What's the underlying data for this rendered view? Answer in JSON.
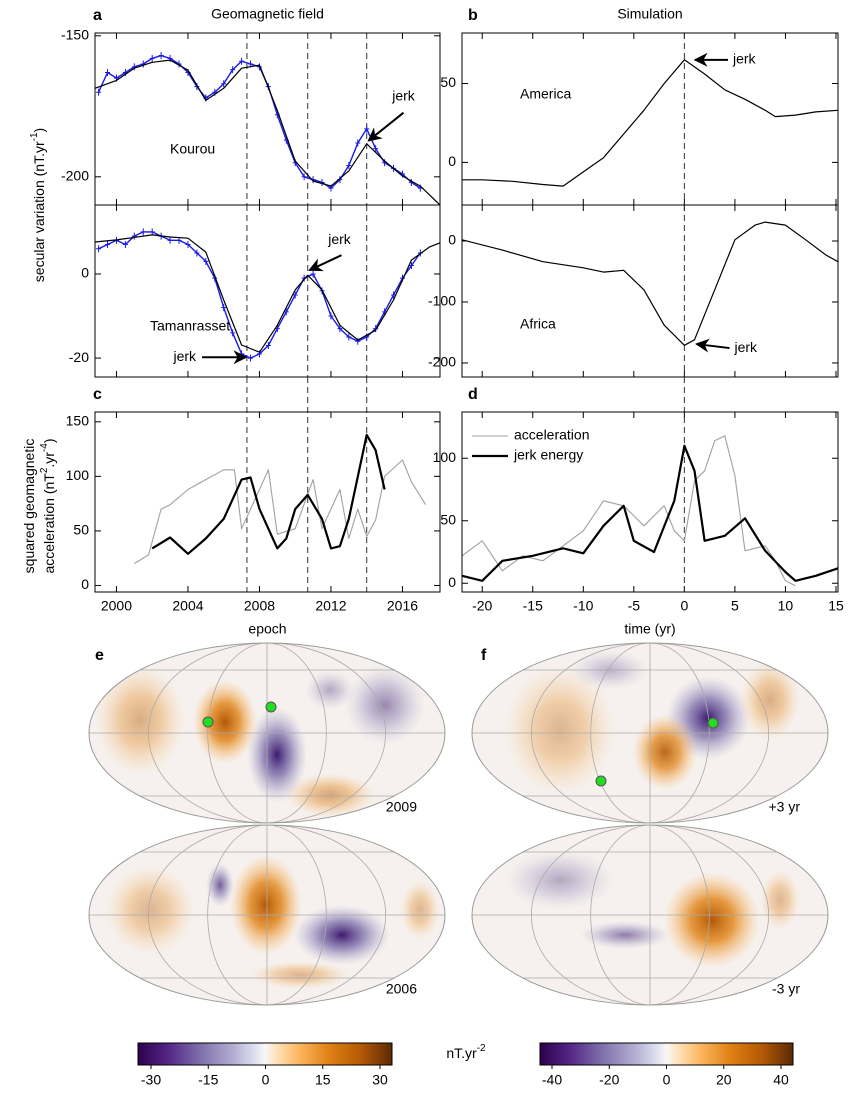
{
  "chart_data": [
    {
      "type": "line",
      "panel": "a",
      "title": "Geomagnetic field",
      "label": "Kourou",
      "ylabel": [
        [
          {
            "t": "secular variation (nT.yr"
          },
          {
            "t": "-1",
            "sup": true
          },
          {
            "t": ")"
          }
        ]
      ],
      "xlim": [
        1998.8,
        2018.1
      ],
      "xticks": [
        2000,
        2004,
        2008,
        2012,
        2016
      ],
      "xtick_labels": false,
      "ylim": [
        -210,
        -149
      ],
      "yticks": [
        -150,
        -200
      ],
      "vlines": [
        2007.3,
        2010.7,
        2014
      ],
      "series": [
        {
          "color": "#1a1ae6",
          "linewidth": 1.4,
          "marker": "+",
          "x": [
            1999,
            1999.5,
            2000,
            2000.5,
            2001,
            2001.5,
            2002,
            2002.5,
            2003,
            2003.5,
            2004,
            2004.5,
            2005,
            2005.5,
            2006,
            2006.5,
            2007,
            2007.5,
            2008,
            2008.5,
            2009,
            2009.5,
            2010,
            2010.5,
            2011,
            2011.5,
            2012,
            2012.5,
            2013,
            2013.5,
            2014,
            2014.5,
            2015,
            2015.5,
            2016,
            2016.5,
            2017
          ],
          "values": [
            -170,
            -163,
            -165,
            -163,
            -161,
            -160,
            -158,
            -157,
            -158,
            -160,
            -163,
            -168,
            -172,
            -170,
            -167,
            -162,
            -159,
            -160,
            -161,
            -168,
            -178,
            -187,
            -195,
            -200,
            -201,
            -202,
            -204,
            -201,
            -196,
            -188,
            -183,
            -190,
            -195,
            -197,
            -199,
            -202,
            -204
          ]
        },
        {
          "color": "#000000",
          "linewidth": 1.2,
          "x": [
            1998.8,
            2000,
            2001,
            2002,
            2003,
            2004,
            2005,
            2006,
            2007,
            2008,
            2009,
            2010,
            2011,
            2012,
            2013,
            2014,
            2015,
            2016,
            2017,
            2018.1
          ],
          "values": [
            -168.6,
            -165.8,
            -161.5,
            -159.4,
            -158.6,
            -162.2,
            -172.9,
            -168.6,
            -161.5,
            -160.4,
            -176.5,
            -194.4,
            -201.5,
            -203.3,
            -197.9,
            -188.3,
            -194.4,
            -199.7,
            -203.3,
            -210
          ]
        }
      ],
      "annotations": [
        {
          "text": "jerk",
          "x": 2014.1,
          "y": -187.2
        }
      ]
    },
    {
      "type": "line",
      "label": "Tamanrasset",
      "xlim": [
        1998.8,
        2018.1
      ],
      "xticks": [
        2000,
        2004,
        2008,
        2012,
        2016
      ],
      "xtick_labels": false,
      "ylim": [
        -24.5,
        16.4
      ],
      "yticks": [
        0,
        -20
      ],
      "vlines": [
        2007.3,
        2010.7,
        2014
      ],
      "series": [
        {
          "color": "#1a1ae6",
          "linewidth": 1.4,
          "marker": "+",
          "x": [
            1999,
            1999.5,
            2000,
            2000.5,
            2001,
            2001.5,
            2002,
            2002.5,
            2003,
            2003.5,
            2004,
            2004.5,
            2005,
            2005.5,
            2006,
            2006.5,
            2007,
            2007.5,
            2008,
            2008.5,
            2009,
            2009.5,
            2010,
            2010.5,
            2011,
            2011.5,
            2012,
            2012.5,
            2013,
            2013.5,
            2014,
            2014.5,
            2015,
            2015.5,
            2016,
            2016.5,
            2017
          ],
          "values": [
            6,
            7,
            8,
            7,
            9,
            10,
            10,
            9,
            8,
            8,
            7,
            5,
            3,
            -1,
            -8,
            -14,
            -19,
            -20,
            -19,
            -17,
            -13,
            -9,
            -5,
            -1,
            0,
            -4,
            -10,
            -13,
            -15,
            -16,
            -15,
            -13,
            -9,
            -5,
            -1,
            2,
            5
          ]
        },
        {
          "color": "#000000",
          "linewidth": 1.2,
          "x": [
            1998.8,
            2000,
            2002,
            2003,
            2004,
            2005,
            2006,
            2007,
            2008,
            2009,
            2010,
            2010.7,
            2011.5,
            2012.5,
            2013.5,
            2014.5,
            2015.5,
            2016.5,
            2017.5,
            2018.1
          ],
          "values": [
            7.6,
            8.1,
            9.3,
            8.8,
            8.5,
            5.2,
            -6.2,
            -16.9,
            -18.6,
            -12.2,
            -3.8,
            -0.3,
            -3.8,
            -12.2,
            -15.7,
            -13.4,
            -6.2,
            3.3,
            6.4,
            7.4
          ]
        }
      ],
      "annotations": [
        {
          "text": "jerk",
          "x": 2010.8,
          "y": 0.9
        },
        {
          "text": "jerk",
          "x": 2007.25,
          "y": -19.8
        }
      ]
    },
    {
      "type": "line",
      "panel": "c",
      "xlabel": "epoch",
      "ylabel": [
        [
          {
            "t": "squared geomagnetic"
          }
        ],
        [
          {
            "t": "acceleration (nT"
          },
          {
            "t": "2",
            "sup": true
          },
          {
            "t": ".yr"
          },
          {
            "t": "-4",
            "sup": true
          },
          {
            "t": ")"
          }
        ]
      ],
      "xlim": [
        1998.8,
        2018.1
      ],
      "xticks": [
        2000,
        2004,
        2008,
        2012,
        2016
      ],
      "ylim": [
        -6,
        159
      ],
      "yticks": [
        0,
        50,
        100,
        150
      ],
      "vlines": [
        2007.3,
        2010.7,
        2014
      ],
      "series": [
        {
          "color": "#a0a0a0",
          "linewidth": 1.1,
          "x": [
            2001,
            2001.8,
            2002.5,
            2003,
            2004,
            2005,
            2006,
            2006.6,
            2007,
            2008,
            2008.5,
            2009,
            2010,
            2011,
            2011.5,
            2012.5,
            2013,
            2013.5,
            2014,
            2014.5,
            2015,
            2016,
            2016.5,
            2017.3
          ],
          "values": [
            20,
            28,
            70,
            74,
            88,
            97,
            106,
            106,
            52,
            88,
            106,
            47,
            52,
            97,
            52,
            88,
            43,
            70,
            45,
            60,
            100,
            115,
            95,
            74
          ]
        },
        {
          "color": "#000000",
          "linewidth": 2.2,
          "x": [
            2002,
            2003,
            2004,
            2005,
            2006,
            2007,
            2007.5,
            2008,
            2009,
            2009.5,
            2010,
            2010.7,
            2011.5,
            2012,
            2012.5,
            2013,
            2014,
            2014.5,
            2015
          ],
          "values": [
            34,
            44,
            29,
            43,
            61,
            97,
            99,
            70,
            34,
            43,
            70,
            83,
            61,
            34,
            36,
            61,
            138,
            124,
            88
          ]
        }
      ]
    },
    {
      "type": "line",
      "panel": "b",
      "title": "Simulation",
      "label": "America",
      "xlim": [
        -22,
        15.2
      ],
      "xticks": [
        -20,
        -15,
        -10,
        -5,
        0,
        5,
        10,
        15
      ],
      "xtick_labels": false,
      "ylim": [
        -27,
        82
      ],
      "yticks": [
        50,
        0
      ],
      "vlines": [
        0
      ],
      "series": [
        {
          "color": "#000000",
          "linewidth": 1.2,
          "x": [
            -22,
            -20,
            -17,
            -14,
            -12,
            -10,
            -8,
            -6,
            -4,
            -2,
            0,
            2,
            4,
            6,
            8,
            9,
            11,
            13,
            15.2
          ],
          "values": [
            -11,
            -11,
            -12,
            -14,
            -15,
            -6,
            3,
            18,
            33,
            50,
            65,
            56,
            46,
            40,
            33,
            29,
            30,
            32,
            33
          ]
        }
      ],
      "annotations": [
        {
          "text": "jerk",
          "x": 1.05,
          "y": 65
        }
      ]
    },
    {
      "type": "line",
      "label": "Africa",
      "xlim": [
        -22,
        15.2
      ],
      "xticks": [
        -20,
        -15,
        -10,
        -5,
        0,
        5,
        10,
        15
      ],
      "xtick_labels": false,
      "ylim": [
        -223,
        59
      ],
      "yticks": [
        0,
        -100,
        -200
      ],
      "vlines": [
        0
      ],
      "series": [
        {
          "color": "#000000",
          "linewidth": 1.2,
          "x": [
            -22,
            -18,
            -14,
            -10,
            -8,
            -6,
            -4,
            -2,
            0,
            1,
            3,
            5,
            7,
            8,
            10,
            12,
            14,
            15.2
          ],
          "values": [
            2,
            -15,
            -34,
            -44,
            -51,
            -48,
            -80,
            -138,
            -171,
            -162,
            -80,
            2,
            26,
            31,
            26,
            2,
            -23,
            -34
          ]
        }
      ],
      "annotations": [
        {
          "text": "jerk",
          "x": 1.2,
          "y": -169
        }
      ]
    },
    {
      "type": "line",
      "panel": "d",
      "xlabel": "time (yr)",
      "xlim": [
        -22,
        15.2
      ],
      "xticks": [
        -20,
        -15,
        -10,
        -5,
        0,
        5,
        10,
        15
      ],
      "ylim": [
        -7,
        137
      ],
      "yticks": [
        0,
        50,
        100
      ],
      "vlines": [
        0
      ],
      "series": [
        {
          "name": "acceleration",
          "color": "#a0a0a0",
          "linewidth": 1.1,
          "x": [
            -22,
            -20,
            -18,
            -16,
            -14,
            -12,
            -10,
            -8,
            -6,
            -4,
            -2,
            -1,
            0,
            1,
            2,
            3,
            4,
            5,
            6,
            8,
            9,
            10,
            11
          ],
          "values": [
            22,
            34,
            10,
            22,
            18,
            30,
            42,
            66,
            62,
            46,
            62,
            42,
            34,
            82,
            90,
            114,
            118,
            86,
            26,
            30,
            18,
            2,
            -2
          ]
        },
        {
          "name": "jerk energy",
          "color": "#000000",
          "linewidth": 2.2,
          "x": [
            -22,
            -20,
            -18,
            -15,
            -12,
            -10,
            -8,
            -6,
            -5,
            -3,
            -1,
            0,
            1,
            2,
            4,
            6,
            8,
            10,
            11,
            13,
            15.2
          ],
          "values": [
            6,
            2,
            18,
            22,
            28,
            24,
            46,
            62,
            34,
            25,
            66,
            110,
            90,
            34,
            38,
            52,
            26,
            9,
            2,
            6,
            12
          ]
        }
      ]
    }
  ],
  "maps": [
    {
      "panel": "e",
      "label": "2009"
    },
    {
      "label": "2006"
    },
    {
      "panel": "f",
      "label": "+3 yr"
    },
    {
      "label": "-3 yr"
    }
  ],
  "colorbars": [
    {
      "lim": [
        -30,
        30
      ],
      "ticks": [
        -30,
        -15,
        0,
        15,
        30
      ]
    },
    {
      "lim": [
        -40,
        40
      ],
      "ticks": [
        -40,
        -20,
        0,
        20,
        40
      ]
    }
  ],
  "colorbar_unit": [
    {
      "t": "nT.yr"
    },
    {
      "t": "-2",
      "sup": true
    }
  ]
}
